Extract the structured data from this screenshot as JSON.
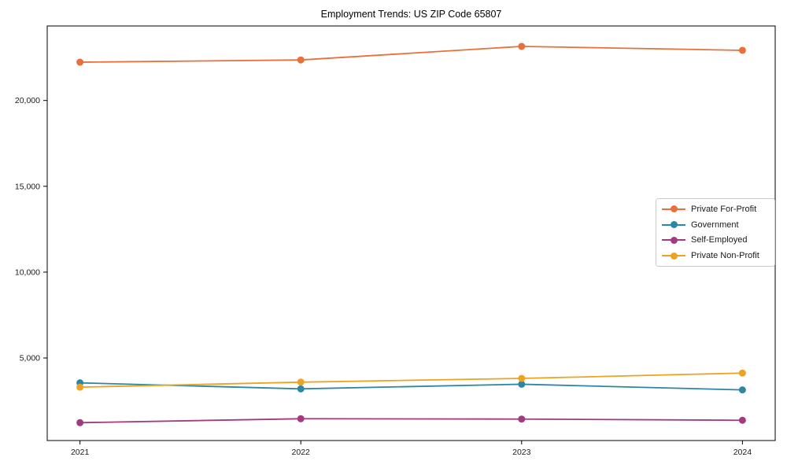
{
  "chart_data": {
    "type": "line",
    "title": "Employment Trends: US ZIP Code 65807",
    "x": [
      2021,
      2022,
      2023,
      2024
    ],
    "x_labels": [
      "2021",
      "2022",
      "2023",
      "2024"
    ],
    "series": [
      {
        "name": "Private For-Profit",
        "color": "#e8703c",
        "values": [
          22230,
          22360,
          23150,
          22920
        ]
      },
      {
        "name": "Government",
        "color": "#2b87a5",
        "values": [
          3550,
          3200,
          3470,
          3140
        ]
      },
      {
        "name": "Self-Employed",
        "color": "#a23a80",
        "values": [
          1230,
          1460,
          1440,
          1370
        ]
      },
      {
        "name": "Private Non-Profit",
        "color": "#eea222",
        "values": [
          3300,
          3590,
          3810,
          4120
        ]
      }
    ],
    "yticks": [
      {
        "value": 5000,
        "label": "5,000"
      },
      {
        "value": 10000,
        "label": "10,000"
      },
      {
        "value": 15000,
        "label": "15,000"
      },
      {
        "value": 20000,
        "label": "20,000"
      }
    ],
    "ylim": [
      190,
      24340
    ],
    "grid": false,
    "legend_position": "right-center",
    "axis_color": "#000000",
    "legend_border_color": "#cccccc"
  }
}
